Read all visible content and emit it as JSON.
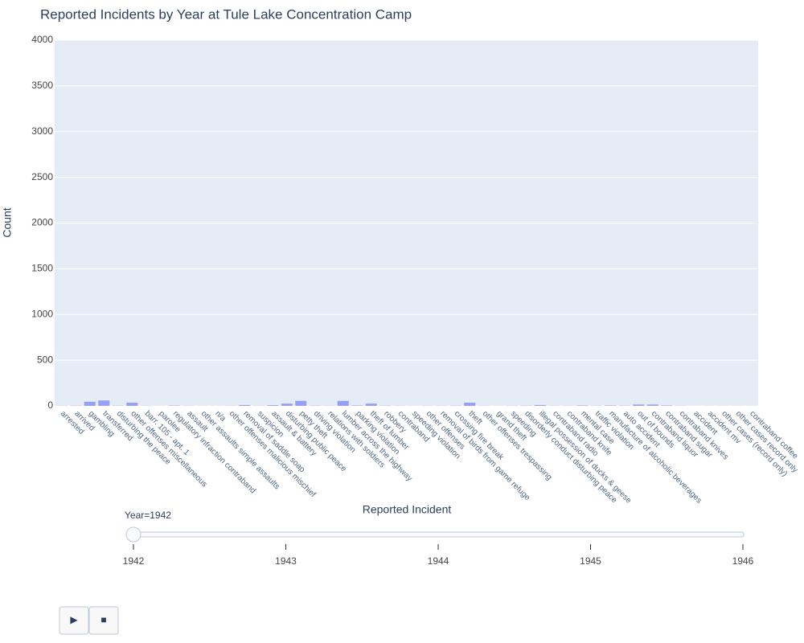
{
  "chart_data": {
    "type": "bar",
    "title": "Reported Incidents by Year at Tule Lake Concentration Camp",
    "x_label": "Reported Incident",
    "y_label": "Count",
    "categories": [
      "arrested",
      "arrived",
      "gambling",
      "transferred",
      "disturbing the peace",
      "other offenses miscellaneous",
      "barr. 105 - apt. 1",
      "parolee",
      "regulatory infraction contraband",
      "assault",
      "other assaults simple assaults",
      "n/a",
      "other offenses malicious mischief",
      "removal of saddle soap",
      "suspicion",
      "assault & battery",
      "disturbing public peace",
      "petty theft",
      "driving violation",
      "relations with soldiers",
      "lumber across the highway",
      "parking violation",
      "theft of lumber",
      "robbery",
      "contraband",
      "speeding violation",
      "other offenses",
      "removal of birds from game refuge",
      "crossing fire break",
      "theft",
      "other offenses trespassing",
      "grand theft",
      "speeding",
      "disorderly conduct disturbing peace",
      "illegal possession of ducks & geese",
      "contraband radio",
      "contraband knife",
      "mental case",
      "traffic violation",
      "manufacture of alcoholic beverages",
      "auto accident",
      "out of bounds",
      "contraband liquor",
      "contraband sugar",
      "contraband knives",
      "accident",
      "accident mv",
      "other cases (record only)",
      "other cases record only",
      "contraband coffee"
    ],
    "values": [
      2,
      3,
      45,
      60,
      3,
      35,
      2,
      1,
      4,
      2,
      1,
      1,
      2,
      10,
      2,
      8,
      25,
      55,
      3,
      2,
      55,
      5,
      25,
      3,
      2,
      1,
      2,
      2,
      3,
      35,
      2,
      1,
      2,
      3,
      10,
      2,
      2,
      5,
      2,
      5,
      3,
      15,
      15,
      5,
      2,
      1,
      1,
      1,
      1,
      1
    ],
    "color": "#636efa",
    "ylim": [
      0,
      4000
    ],
    "yticks": [
      0,
      500,
      1000,
      1500,
      2000,
      2500,
      3000,
      3500,
      4000
    ],
    "grid": true,
    "slider": {
      "label": "Year=1942",
      "steps": [
        1942,
        1943,
        1944,
        1945,
        1946
      ]
    },
    "buttons": [
      "▶",
      "■"
    ]
  }
}
